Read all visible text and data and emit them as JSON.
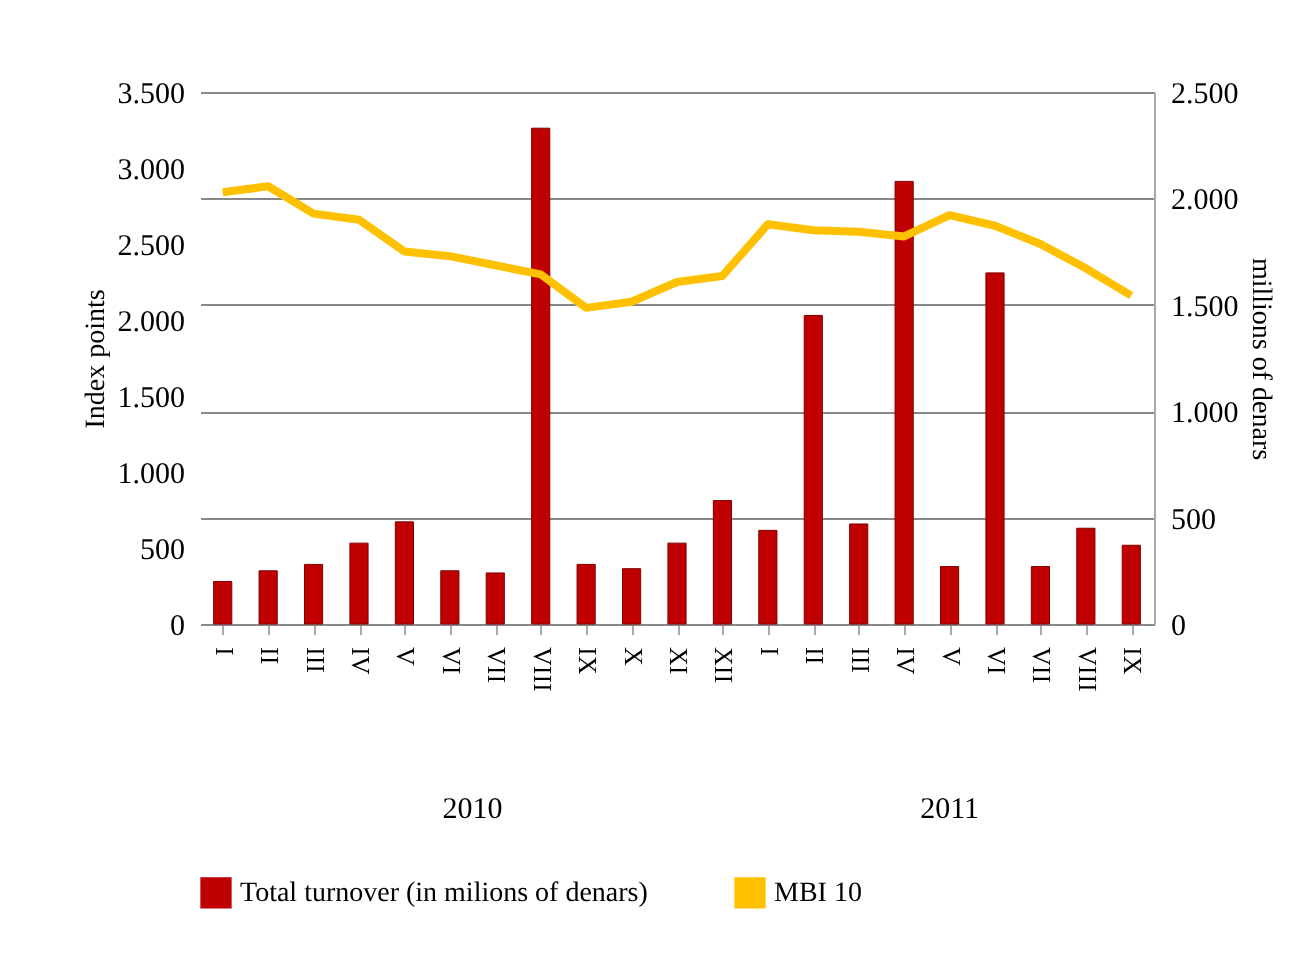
{
  "chart_data": {
    "type": "bar",
    "categories": [
      "I",
      "II",
      "III",
      "IV",
      "V",
      "VI",
      "VII",
      "VIII",
      "IX",
      "X",
      "XI",
      "XII",
      "I",
      "II",
      "III",
      "IV",
      "V",
      "VI",
      "VII",
      "VIII",
      "IX"
    ],
    "series": [
      {
        "name": "Total turnover (in milions of denars)",
        "axis": "y2",
        "color": "#c00000",
        "values": [
          200,
          250,
          280,
          380,
          480,
          250,
          240,
          2330,
          280,
          260,
          380,
          580,
          440,
          1450,
          470,
          2080,
          270,
          1650,
          270,
          450,
          370
        ]
      },
      {
        "name": "MBI 10",
        "type": "line",
        "color": "#ffc000",
        "values": [
          2840,
          2880,
          2700,
          2660,
          2450,
          2420,
          2360,
          2300,
          2080,
          2120,
          2250,
          2290,
          2630,
          2590,
          2580,
          2550,
          2690,
          2620,
          2500,
          2340,
          2160
        ]
      }
    ],
    "ylabel": "Index points",
    "y2label": "millions of denars",
    "ylim": [
      0,
      3500
    ],
    "yticks": [
      0,
      {
        "value": 500,
        "label": "500"
      },
      {
        "value": 1000,
        "label": "1.000"
      },
      {
        "value": 1500,
        "label": "1.500"
      },
      {
        "value": 2000,
        "label": "2.000"
      },
      {
        "value": 2500,
        "label": "2.500"
      },
      {
        "value": 3000,
        "label": "3.000"
      },
      {
        "value": 3500,
        "label": "3.500"
      }
    ],
    "y2lim": [
      0,
      2500
    ],
    "y2ticks": [
      0,
      {
        "value": 500,
        "label": "500"
      },
      {
        "value": 1000,
        "label": "1.000"
      },
      {
        "value": 1500,
        "label": "1.500"
      },
      {
        "value": 2000,
        "label": "2.000"
      },
      {
        "value": 2500,
        "label": "2.500"
      }
    ],
    "annotations": [
      "2010",
      "2011"
    ],
    "grid": "y",
    "legend": "bottom",
    "line_style": "solid",
    "marker": "none"
  }
}
